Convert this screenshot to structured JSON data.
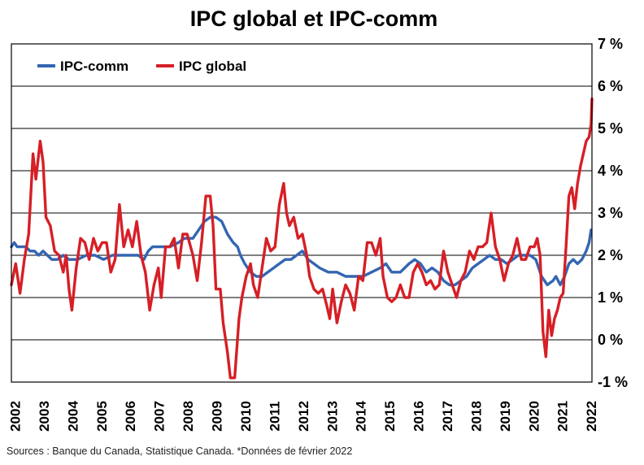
{
  "chart_data": {
    "type": "line",
    "title": "IPC global et IPC-comm",
    "source": "Sources : Banque du Canada, Statistique Canada. *Données de février 2022",
    "y_unit": "%",
    "ylim": [
      -1,
      7
    ],
    "y_ticks": [
      "7 %",
      "6 %",
      "5 %",
      "4 %",
      "3 %",
      "2 %",
      "1 %",
      "0 %",
      "-1 %"
    ],
    "y_tick_values": [
      7,
      6,
      5,
      4,
      3,
      2,
      1,
      0,
      -1
    ],
    "xlim": [
      2002,
      2022.15
    ],
    "x_ticks": [
      "2002",
      "2003",
      "2004",
      "2005",
      "2006",
      "2007",
      "2008",
      "2009",
      "2010",
      "2011",
      "2012",
      "2013",
      "2014",
      "2015",
      "2016",
      "2017",
      "2018",
      "2019",
      "2020",
      "2021",
      "2022"
    ],
    "x_tick_values": [
      2002,
      2003,
      2004,
      2005,
      2006,
      2007,
      2008,
      2009,
      2010,
      2011,
      2012,
      2013,
      2014,
      2015,
      2016,
      2017,
      2018,
      2019,
      2020,
      2021,
      2022
    ],
    "grid": true,
    "legend_position": "top-left",
    "colors": {
      "ipc_comm": "#3366b3",
      "ipc_global": "#d61f26",
      "grid": "#000000",
      "frame": "#000000"
    },
    "series": [
      {
        "name": "IPC-comm",
        "color": "#3366b3",
        "points": [
          [
            2002.0,
            2.2
          ],
          [
            2002.1,
            2.3
          ],
          [
            2002.2,
            2.2
          ],
          [
            2002.35,
            2.2
          ],
          [
            2002.5,
            2.2
          ],
          [
            2002.65,
            2.1
          ],
          [
            2002.8,
            2.1
          ],
          [
            2002.95,
            2.0
          ],
          [
            2003.1,
            2.1
          ],
          [
            2003.25,
            2.0
          ],
          [
            2003.4,
            1.9
          ],
          [
            2003.6,
            1.9
          ],
          [
            2003.8,
            2.0
          ],
          [
            2004.0,
            1.9
          ],
          [
            2004.3,
            1.9
          ],
          [
            2004.6,
            2.0
          ],
          [
            2004.9,
            2.0
          ],
          [
            2005.2,
            1.9
          ],
          [
            2005.5,
            2.0
          ],
          [
            2005.8,
            2.0
          ],
          [
            2006.1,
            2.0
          ],
          [
            2006.4,
            2.0
          ],
          [
            2006.6,
            1.9
          ],
          [
            2006.75,
            2.1
          ],
          [
            2006.9,
            2.2
          ],
          [
            2007.2,
            2.2
          ],
          [
            2007.5,
            2.2
          ],
          [
            2007.8,
            2.3
          ],
          [
            2008.0,
            2.4
          ],
          [
            2008.3,
            2.4
          ],
          [
            2008.5,
            2.6
          ],
          [
            2008.7,
            2.8
          ],
          [
            2008.9,
            2.9
          ],
          [
            2009.1,
            2.9
          ],
          [
            2009.3,
            2.8
          ],
          [
            2009.5,
            2.5
          ],
          [
            2009.7,
            2.3
          ],
          [
            2009.85,
            2.2
          ],
          [
            2009.95,
            2.0
          ],
          [
            2010.1,
            1.8
          ],
          [
            2010.3,
            1.6
          ],
          [
            2010.5,
            1.5
          ],
          [
            2010.7,
            1.5
          ],
          [
            2010.9,
            1.6
          ],
          [
            2011.1,
            1.7
          ],
          [
            2011.3,
            1.8
          ],
          [
            2011.5,
            1.9
          ],
          [
            2011.7,
            1.9
          ],
          [
            2011.9,
            2.0
          ],
          [
            2012.1,
            2.1
          ],
          [
            2012.3,
            1.9
          ],
          [
            2012.5,
            1.8
          ],
          [
            2012.7,
            1.7
          ],
          [
            2013.0,
            1.6
          ],
          [
            2013.3,
            1.6
          ],
          [
            2013.6,
            1.5
          ],
          [
            2013.9,
            1.5
          ],
          [
            2014.2,
            1.5
          ],
          [
            2014.5,
            1.6
          ],
          [
            2014.8,
            1.7
          ],
          [
            2015.0,
            1.8
          ],
          [
            2015.2,
            1.6
          ],
          [
            2015.5,
            1.6
          ],
          [
            2015.8,
            1.8
          ],
          [
            2016.0,
            1.9
          ],
          [
            2016.2,
            1.8
          ],
          [
            2016.4,
            1.6
          ],
          [
            2016.6,
            1.7
          ],
          [
            2016.8,
            1.6
          ],
          [
            2017.0,
            1.4
          ],
          [
            2017.2,
            1.3
          ],
          [
            2017.4,
            1.3
          ],
          [
            2017.6,
            1.4
          ],
          [
            2017.8,
            1.5
          ],
          [
            2018.0,
            1.7
          ],
          [
            2018.2,
            1.8
          ],
          [
            2018.4,
            1.9
          ],
          [
            2018.6,
            2.0
          ],
          [
            2018.8,
            1.9
          ],
          [
            2019.0,
            1.9
          ],
          [
            2019.2,
            1.8
          ],
          [
            2019.4,
            1.9
          ],
          [
            2019.6,
            2.0
          ],
          [
            2019.8,
            2.0
          ],
          [
            2020.0,
            2.0
          ],
          [
            2020.2,
            1.9
          ],
          [
            2020.4,
            1.5
          ],
          [
            2020.6,
            1.3
          ],
          [
            2020.8,
            1.4
          ],
          [
            2020.9,
            1.5
          ],
          [
            2021.05,
            1.3
          ],
          [
            2021.2,
            1.5
          ],
          [
            2021.35,
            1.8
          ],
          [
            2021.5,
            1.9
          ],
          [
            2021.65,
            1.8
          ],
          [
            2021.8,
            1.9
          ],
          [
            2021.95,
            2.1
          ],
          [
            2022.05,
            2.3
          ],
          [
            2022.12,
            2.6
          ]
        ]
      },
      {
        "name": "IPC global",
        "color": "#d61f26",
        "points": [
          [
            2002.0,
            1.3
          ],
          [
            2002.15,
            1.8
          ],
          [
            2002.3,
            1.1
          ],
          [
            2002.45,
            1.9
          ],
          [
            2002.6,
            2.5
          ],
          [
            2002.75,
            4.4
          ],
          [
            2002.85,
            3.8
          ],
          [
            2003.0,
            4.7
          ],
          [
            2003.1,
            4.2
          ],
          [
            2003.2,
            2.9
          ],
          [
            2003.35,
            2.7
          ],
          [
            2003.5,
            2.1
          ],
          [
            2003.65,
            2.0
          ],
          [
            2003.8,
            1.6
          ],
          [
            2003.9,
            2.0
          ],
          [
            2004.0,
            1.2
          ],
          [
            2004.1,
            0.7
          ],
          [
            2004.25,
            1.7
          ],
          [
            2004.4,
            2.4
          ],
          [
            2004.55,
            2.3
          ],
          [
            2004.7,
            1.9
          ],
          [
            2004.85,
            2.4
          ],
          [
            2005.0,
            2.1
          ],
          [
            2005.15,
            2.3
          ],
          [
            2005.3,
            2.3
          ],
          [
            2005.45,
            1.6
          ],
          [
            2005.6,
            1.9
          ],
          [
            2005.75,
            3.2
          ],
          [
            2005.9,
            2.2
          ],
          [
            2006.05,
            2.6
          ],
          [
            2006.2,
            2.2
          ],
          [
            2006.35,
            2.8
          ],
          [
            2006.5,
            2.0
          ],
          [
            2006.65,
            1.6
          ],
          [
            2006.8,
            0.7
          ],
          [
            2006.95,
            1.3
          ],
          [
            2007.1,
            1.7
          ],
          [
            2007.2,
            1.0
          ],
          [
            2007.35,
            2.2
          ],
          [
            2007.5,
            2.2
          ],
          [
            2007.65,
            2.4
          ],
          [
            2007.8,
            1.7
          ],
          [
            2007.95,
            2.5
          ],
          [
            2008.1,
            2.5
          ],
          [
            2008.3,
            2.0
          ],
          [
            2008.45,
            1.4
          ],
          [
            2008.6,
            2.3
          ],
          [
            2008.75,
            3.4
          ],
          [
            2008.9,
            3.4
          ],
          [
            2009.0,
            2.7
          ],
          [
            2009.1,
            1.2
          ],
          [
            2009.25,
            1.2
          ],
          [
            2009.35,
            0.4
          ],
          [
            2009.5,
            -0.3
          ],
          [
            2009.6,
            -0.9
          ],
          [
            2009.75,
            -0.9
          ],
          [
            2009.9,
            0.5
          ],
          [
            2010.0,
            1.0
          ],
          [
            2010.15,
            1.5
          ],
          [
            2010.3,
            1.8
          ],
          [
            2010.4,
            1.3
          ],
          [
            2010.55,
            1.0
          ],
          [
            2010.7,
            1.7
          ],
          [
            2010.85,
            2.4
          ],
          [
            2011.0,
            2.1
          ],
          [
            2011.15,
            2.2
          ],
          [
            2011.3,
            3.2
          ],
          [
            2011.45,
            3.7
          ],
          [
            2011.55,
            3.0
          ],
          [
            2011.65,
            2.7
          ],
          [
            2011.8,
            2.9
          ],
          [
            2011.95,
            2.4
          ],
          [
            2012.1,
            2.5
          ],
          [
            2012.25,
            2.0
          ],
          [
            2012.35,
            1.5
          ],
          [
            2012.5,
            1.2
          ],
          [
            2012.65,
            1.1
          ],
          [
            2012.8,
            1.2
          ],
          [
            2012.95,
            0.8
          ],
          [
            2013.05,
            0.5
          ],
          [
            2013.15,
            1.2
          ],
          [
            2013.3,
            0.4
          ],
          [
            2013.45,
            0.9
          ],
          [
            2013.6,
            1.3
          ],
          [
            2013.75,
            1.1
          ],
          [
            2013.9,
            0.7
          ],
          [
            2014.05,
            1.5
          ],
          [
            2014.2,
            1.4
          ],
          [
            2014.35,
            2.3
          ],
          [
            2014.5,
            2.3
          ],
          [
            2014.65,
            2.0
          ],
          [
            2014.8,
            2.4
          ],
          [
            2014.9,
            1.5
          ],
          [
            2015.05,
            1.0
          ],
          [
            2015.2,
            0.9
          ],
          [
            2015.35,
            1.0
          ],
          [
            2015.5,
            1.3
          ],
          [
            2015.65,
            1.0
          ],
          [
            2015.8,
            1.0
          ],
          [
            2015.95,
            1.6
          ],
          [
            2016.1,
            1.8
          ],
          [
            2016.25,
            1.6
          ],
          [
            2016.4,
            1.3
          ],
          [
            2016.55,
            1.4
          ],
          [
            2016.7,
            1.2
          ],
          [
            2016.85,
            1.3
          ],
          [
            2017.0,
            2.1
          ],
          [
            2017.15,
            1.6
          ],
          [
            2017.3,
            1.3
          ],
          [
            2017.45,
            1.0
          ],
          [
            2017.6,
            1.4
          ],
          [
            2017.75,
            1.6
          ],
          [
            2017.9,
            2.1
          ],
          [
            2018.05,
            1.9
          ],
          [
            2018.2,
            2.2
          ],
          [
            2018.35,
            2.2
          ],
          [
            2018.5,
            2.3
          ],
          [
            2018.65,
            3.0
          ],
          [
            2018.8,
            2.2
          ],
          [
            2018.95,
            1.9
          ],
          [
            2019.1,
            1.4
          ],
          [
            2019.25,
            1.8
          ],
          [
            2019.4,
            2.0
          ],
          [
            2019.55,
            2.4
          ],
          [
            2019.7,
            1.9
          ],
          [
            2019.85,
            1.9
          ],
          [
            2020.0,
            2.2
          ],
          [
            2020.15,
            2.2
          ],
          [
            2020.25,
            2.4
          ],
          [
            2020.35,
            2.0
          ],
          [
            2020.45,
            0.2
          ],
          [
            2020.55,
            -0.4
          ],
          [
            2020.65,
            0.7
          ],
          [
            2020.75,
            0.1
          ],
          [
            2020.85,
            0.5
          ],
          [
            2020.95,
            0.7
          ],
          [
            2021.05,
            1.0
          ],
          [
            2021.15,
            1.1
          ],
          [
            2021.25,
            2.2
          ],
          [
            2021.35,
            3.4
          ],
          [
            2021.45,
            3.6
          ],
          [
            2021.55,
            3.1
          ],
          [
            2021.65,
            3.7
          ],
          [
            2021.75,
            4.1
          ],
          [
            2021.85,
            4.4
          ],
          [
            2021.95,
            4.7
          ],
          [
            2022.05,
            4.8
          ],
          [
            2022.12,
            5.1
          ],
          [
            2022.15,
            5.7
          ]
        ]
      }
    ]
  }
}
